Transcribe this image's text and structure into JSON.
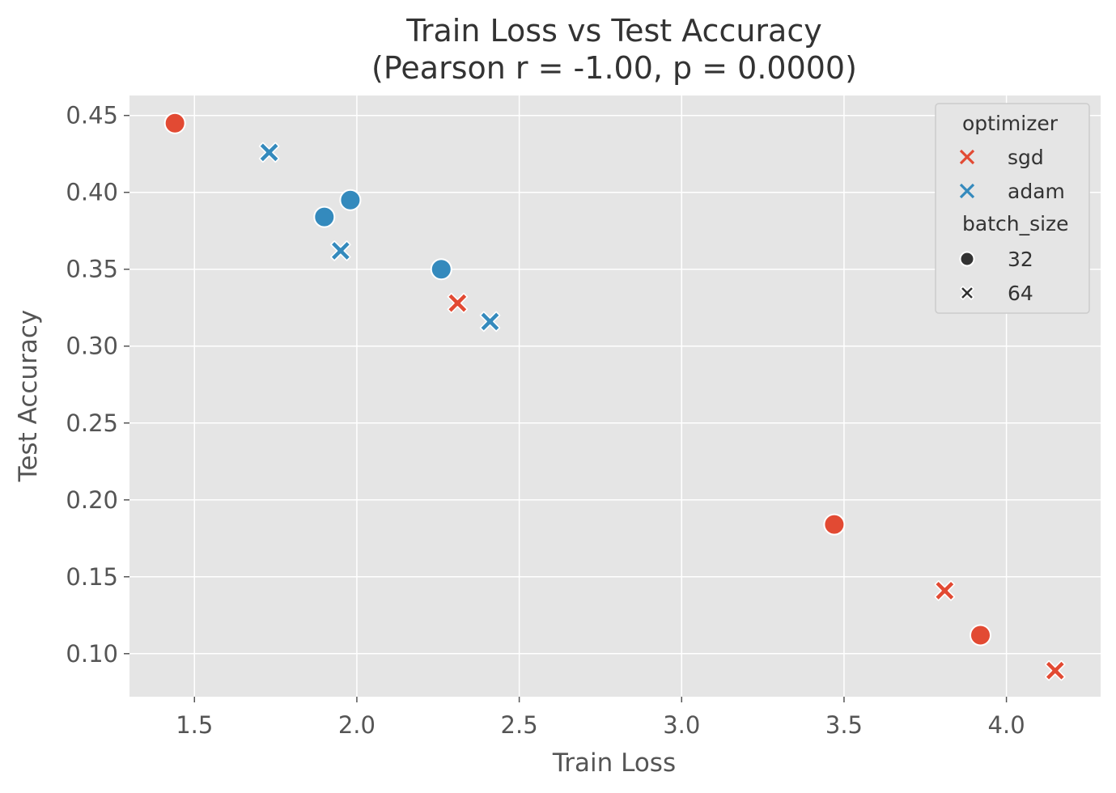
{
  "chart_data": {
    "type": "scatter",
    "title": "Train Loss vs Test Accuracy",
    "subtitle": "(Pearson r = -1.00, p = 0.0000)",
    "xlabel": "Train Loss",
    "ylabel": "Test Accuracy",
    "xlim": [
      1.3,
      4.29
    ],
    "ylim": [
      0.072,
      0.463
    ],
    "xticks": [
      1.5,
      2.0,
      2.5,
      3.0,
      3.5,
      4.0
    ],
    "xtick_labels": [
      "1.5",
      "2.0",
      "2.5",
      "3.0",
      "3.5",
      "4.0"
    ],
    "yticks": [
      0.1,
      0.15,
      0.2,
      0.25,
      0.3,
      0.35,
      0.4,
      0.45
    ],
    "ytick_labels": [
      "0.10",
      "0.15",
      "0.20",
      "0.25",
      "0.30",
      "0.35",
      "0.40",
      "0.45"
    ],
    "grid": true,
    "legend_position": "top-right",
    "colors": {
      "sgd": "#E24A33",
      "adam": "#348ABD",
      "plot_background": "#E5E5E5",
      "grid": "#FFFFFF",
      "neutral_marker": "#333333"
    },
    "legend": {
      "hue_title": "optimizer",
      "hue_entries": [
        {
          "label": "sgd",
          "key": "sgd",
          "marker": "x"
        },
        {
          "label": "adam",
          "key": "adam",
          "marker": "x"
        }
      ],
      "style_title": "batch_size",
      "style_entries": [
        {
          "label": "32",
          "marker": "circle"
        },
        {
          "label": "64",
          "marker": "x"
        }
      ]
    },
    "points": [
      {
        "x": 1.44,
        "y": 0.445,
        "optimizer": "sgd",
        "batch_size": "32"
      },
      {
        "x": 1.73,
        "y": 0.426,
        "optimizer": "adam",
        "batch_size": "64"
      },
      {
        "x": 1.9,
        "y": 0.384,
        "optimizer": "adam",
        "batch_size": "32"
      },
      {
        "x": 1.98,
        "y": 0.395,
        "optimizer": "adam",
        "batch_size": "32"
      },
      {
        "x": 1.95,
        "y": 0.362,
        "optimizer": "adam",
        "batch_size": "64"
      },
      {
        "x": 2.26,
        "y": 0.35,
        "optimizer": "adam",
        "batch_size": "32"
      },
      {
        "x": 2.31,
        "y": 0.328,
        "optimizer": "sgd",
        "batch_size": "64"
      },
      {
        "x": 2.41,
        "y": 0.316,
        "optimizer": "adam",
        "batch_size": "64"
      },
      {
        "x": 3.47,
        "y": 0.184,
        "optimizer": "sgd",
        "batch_size": "32"
      },
      {
        "x": 3.81,
        "y": 0.141,
        "optimizer": "sgd",
        "batch_size": "64"
      },
      {
        "x": 3.92,
        "y": 0.112,
        "optimizer": "sgd",
        "batch_size": "32"
      },
      {
        "x": 4.15,
        "y": 0.089,
        "optimizer": "sgd",
        "batch_size": "64"
      }
    ]
  }
}
